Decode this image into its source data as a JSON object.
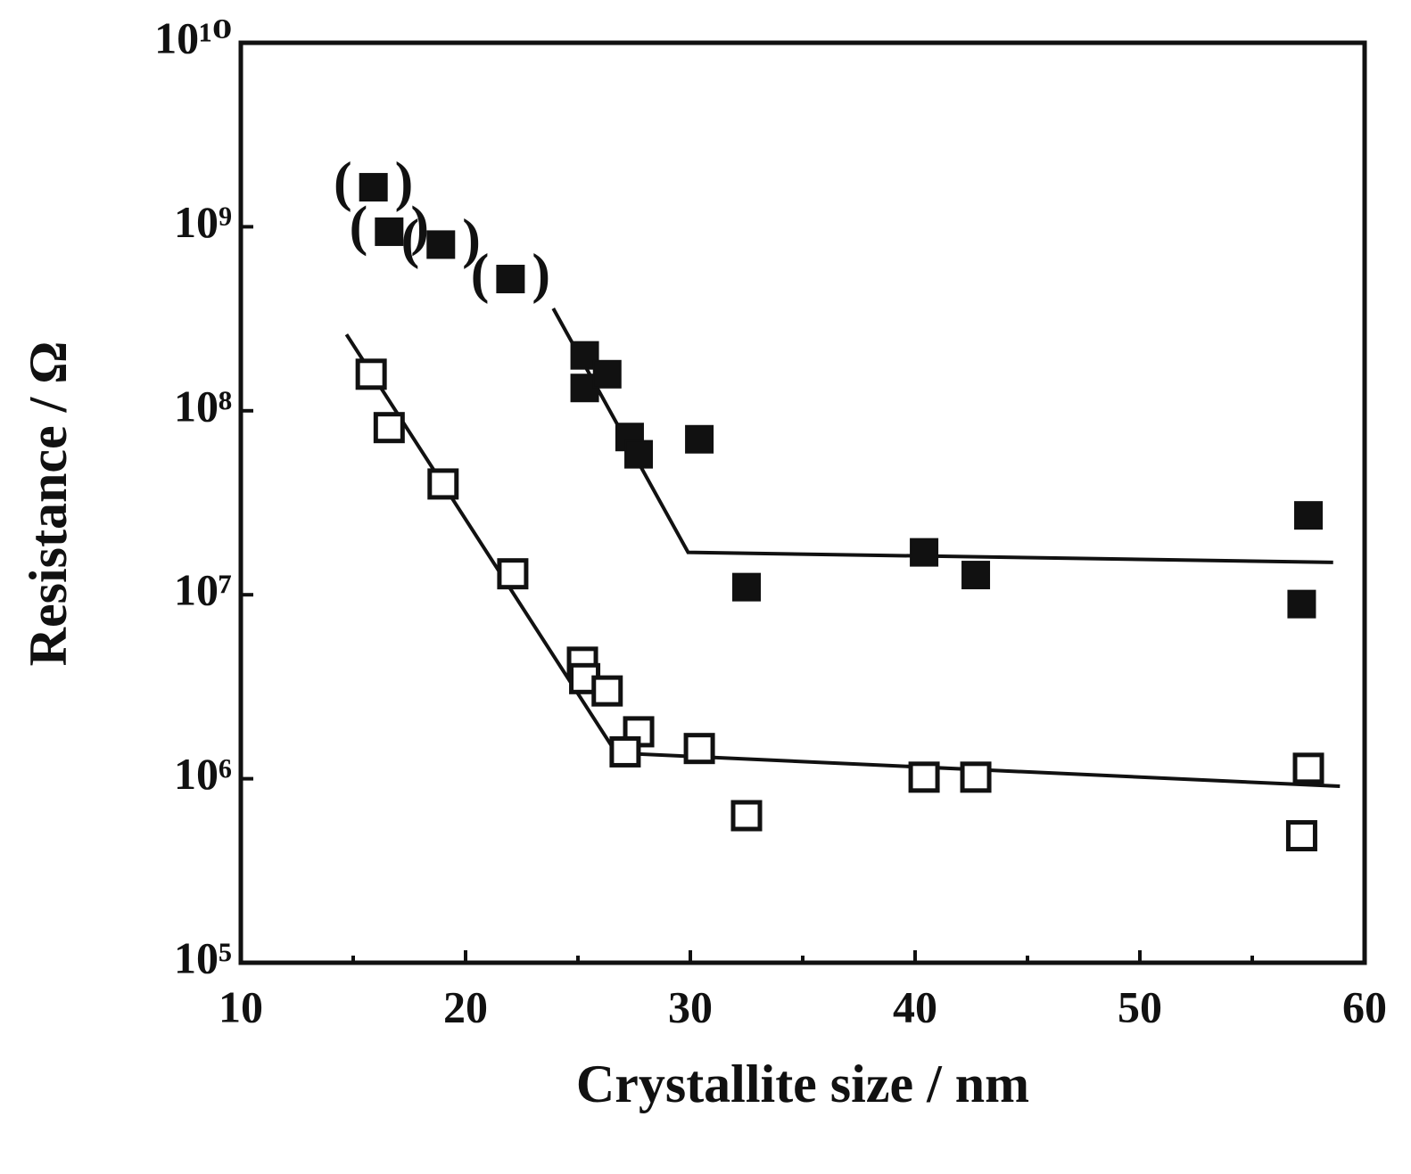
{
  "chart_data": {
    "type": "scatter",
    "x_label": "Crystallite size / nm",
    "y_label": "Resistance / Ω",
    "xlim": [
      10,
      60
    ],
    "xticks": [
      10,
      20,
      30,
      40,
      50,
      60
    ],
    "xminorticks": [
      15,
      25,
      35,
      45,
      55
    ],
    "ylim": [
      100000,
      10000000000
    ],
    "yticks": [
      {
        "value": 100000,
        "label": "10⁵"
      },
      {
        "value": 1000000,
        "label": "10⁶"
      },
      {
        "value": 10000000,
        "label": "10⁷"
      },
      {
        "value": 100000000,
        "label": "10⁸"
      },
      {
        "value": 1000000000,
        "label": "10⁹"
      },
      {
        "value": 10000000000,
        "label": "10¹⁰"
      }
    ],
    "log_y": true,
    "bracket_marks": [
      "(",
      ")"
    ],
    "series": [
      {
        "kind": "points",
        "marker": "filled-square",
        "color": "#111111",
        "x": [
          15.9,
          16.6,
          18.9,
          22.0,
          25.3,
          25.3,
          26.3,
          27.3,
          27.7,
          30.4,
          32.5,
          40.4,
          42.7,
          57.5,
          57.2
        ],
        "values": [
          1640000000,
          940000000,
          800000000,
          520000000,
          200000000,
          133000000,
          158000000,
          72000000,
          58000000,
          70000000,
          11000000,
          17000000,
          12800000,
          27000000,
          8900000
        ],
        "bracketed": [
          true,
          true,
          true,
          true,
          false,
          false,
          false,
          false,
          false,
          false,
          false,
          false,
          false,
          false,
          false
        ]
      },
      {
        "kind": "points",
        "marker": "open-square",
        "color": "#111111",
        "x": [
          15.8,
          16.6,
          19.0,
          22.1,
          25.2,
          25.3,
          26.3,
          27.7,
          27.1,
          30.4,
          32.5,
          40.4,
          42.7,
          57.5,
          57.2
        ],
        "values": [
          158000000,
          81000000,
          40000000,
          13000000,
          4300000,
          3500000,
          3000000,
          1800000,
          1400000,
          1460000,
          630000,
          1020000,
          1020000,
          1140000,
          490000
        ]
      },
      {
        "kind": "line",
        "color": "#111111",
        "x": [
          23.9,
          29.9,
          58.6
        ],
        "values": [
          360000000,
          17000000,
          15000000
        ]
      },
      {
        "kind": "line",
        "color": "#111111",
        "x": [
          14.7,
          26.7,
          58.9
        ],
        "values": [
          260000000,
          1380000,
          910000
        ]
      }
    ]
  }
}
